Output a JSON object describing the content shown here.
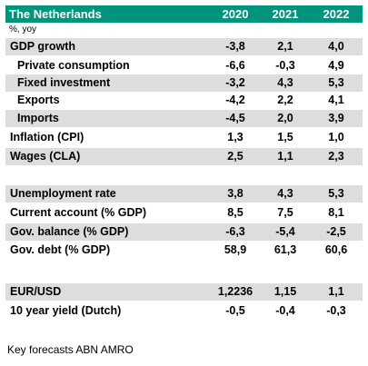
{
  "header": {
    "title": "The Netherlands",
    "years": [
      "2020",
      "2021",
      "2022"
    ],
    "unit": "%, yoy"
  },
  "rows": [
    {
      "label": "GDP growth",
      "values": [
        "-3,8",
        "2,1",
        "4,0"
      ]
    },
    {
      "label": "Private consumption",
      "values": [
        "-6,6",
        "-0,3",
        "4,9"
      ]
    },
    {
      "label": "Fixed investment",
      "values": [
        "-3,2",
        "4,3",
        "5,3"
      ]
    },
    {
      "label": "Exports",
      "values": [
        "-4,2",
        "2,2",
        "4,1"
      ]
    },
    {
      "label": "Imports",
      "values": [
        "-4,5",
        "2,0",
        "3,9"
      ]
    },
    {
      "label": "Inflation (CPI)",
      "values": [
        "1,3",
        "1,5",
        "1,0"
      ]
    },
    {
      "label": "Wages (CLA)",
      "values": [
        "2,5",
        "1,1",
        "2,3"
      ]
    },
    {
      "label": "",
      "values": [
        "",
        "",
        ""
      ]
    },
    {
      "label": "Unemployment rate",
      "values": [
        "3,8",
        "4,3",
        "5,3"
      ]
    },
    {
      "label": "Current account (% GDP)",
      "values": [
        "8,5",
        "7,5",
        "8,1"
      ]
    },
    {
      "label": "Gov. balance (% GDP)",
      "values": [
        "-6,3",
        "-5,4",
        "-2,5"
      ]
    },
    {
      "label": "Gov. debt (% GDP)",
      "values": [
        "58,9",
        "61,3",
        "60,6"
      ]
    },
    {
      "label": "",
      "values": [
        "",
        "",
        ""
      ]
    },
    {
      "label": "EUR/USD",
      "values": [
        "1,2236",
        "1,15",
        "1,1"
      ]
    },
    {
      "label": "10 year yield (Dutch)",
      "values": [
        "-0,5",
        "-0,4",
        "-0,3"
      ]
    }
  ],
  "source": "Key forecasts ABN AMRO",
  "colors": {
    "header": "#00947f",
    "shade": "#dddddd"
  }
}
